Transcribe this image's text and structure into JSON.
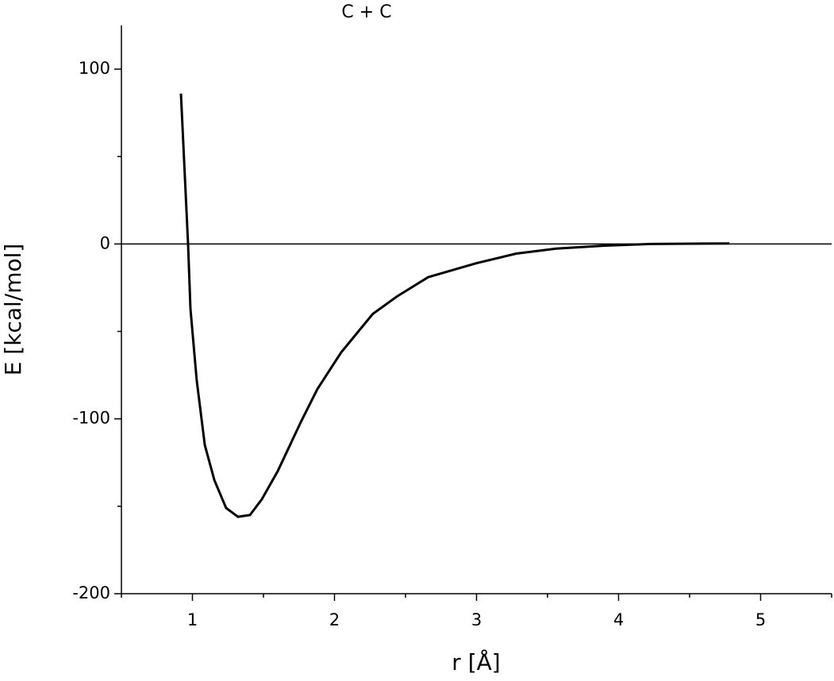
{
  "chart_data": {
    "type": "line",
    "title": "C + C",
    "xlabel": "r [Å]",
    "ylabel": "E [kcal/mol]",
    "x": [
      0.919,
      0.969,
      0.986,
      1.03,
      1.087,
      1.154,
      1.237,
      1.32,
      1.405,
      1.489,
      1.6,
      1.768,
      1.88,
      2.047,
      2.27,
      2.44,
      2.66,
      3.0,
      3.28,
      3.56,
      3.89,
      4.23,
      4.78
    ],
    "series": [
      {
        "name": "C + C",
        "color": "#000000",
        "values": [
          86,
          0,
          -37,
          -78,
          -115,
          -135,
          -151,
          -156,
          -155,
          -146,
          -130,
          -101,
          -83,
          -62,
          -40,
          -30,
          -19,
          -11,
          -5.5,
          -2.7,
          -1,
          0,
          0.3
        ]
      }
    ],
    "xlim": [
      0.5,
      5.5
    ],
    "ylim": [
      -200,
      125
    ],
    "xticks": [
      1,
      2,
      3,
      4,
      5
    ],
    "yticks": [
      -200,
      -100,
      0,
      100
    ],
    "xminorticks": [
      0.5,
      1.5,
      2.5,
      3.5,
      4.5,
      5.5
    ],
    "yminorticks": [
      -150,
      -50,
      50
    ],
    "zero_line": true
  }
}
